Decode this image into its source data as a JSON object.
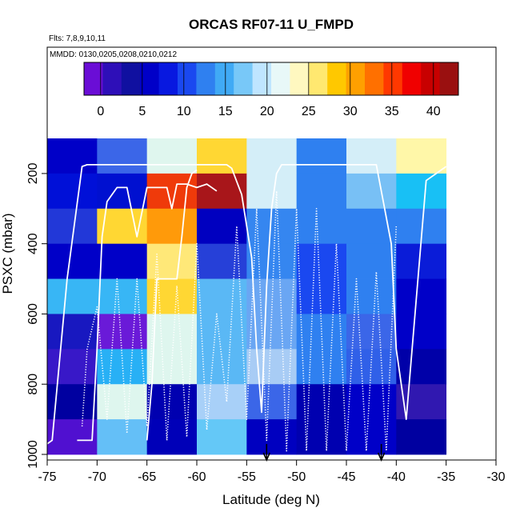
{
  "chart_data": {
    "type": "heatmap",
    "title": "ORCAS RF07-11 U_FMPD",
    "subtitle_flights": "Flts: 7,8,9,10,11",
    "subtitle_dates": "MMDD: 0130,0205,0208,0210,0212",
    "xlabel": "Latitude (deg N)",
    "ylabel": "PSXC (mbar)",
    "xlim": [
      -75,
      -30
    ],
    "ylim": [
      1000,
      100
    ],
    "x_ticks": [
      -75,
      -70,
      -65,
      -60,
      -55,
      -50,
      -45,
      -40,
      -35,
      -30
    ],
    "y_ticks": [
      200,
      400,
      600,
      800,
      1000
    ],
    "colorbar": {
      "range": [
        -2,
        43
      ],
      "ticks": [
        0,
        5,
        10,
        15,
        20,
        25,
        30,
        35,
        40
      ],
      "colors": [
        "#6a0dd6",
        "#2e0fb8",
        "#1010a0",
        "#0000c8",
        "#0818e0",
        "#1a48f0",
        "#2f80f0",
        "#40aaf5",
        "#78c8f8",
        "#bfe5ff",
        "#e8f8f8",
        "#fff8c0",
        "#ffe870",
        "#ffc800",
        "#ffa000",
        "#ff7000",
        "#ff3800",
        "#f00000",
        "#c80000",
        "#9a1010"
      ]
    },
    "lat_bins": [
      -75,
      -70,
      -65,
      -60,
      -55,
      -50,
      -45,
      -40,
      -35
    ],
    "pressure_bins": [
      100,
      200,
      300,
      400,
      500,
      600,
      700,
      800,
      900,
      1000
    ],
    "grid_colors": [
      [
        "#0000c8",
        "#3b66e8",
        "#dff6ee",
        "#ffd733",
        "#d4eef8",
        "#2f80f0",
        "#d4eef8",
        "#fff7a8"
      ],
      [
        "#0010d8",
        "#0010d0",
        "#ef3a0a",
        "#a8161a",
        "#d4eef8",
        "#2f80f0",
        "#78c0f5",
        "#18c0f5"
      ],
      [
        "#2238d8",
        "#ffd733",
        "#ff9a0a",
        "#0000c0",
        "#3586f0",
        "#2f80f0",
        "#2f80f0",
        "#2f80f0"
      ],
      [
        "#0000c8",
        "#0000c8",
        "#ffe878",
        "#2640d8",
        "#3586f0",
        "#1a48f0",
        "#2f80f0",
        "#0a1cd8"
      ],
      [
        "#38b6f5",
        "#38b6f5",
        "#ffd733",
        "#5ab8f5",
        "#6aa6f3",
        "#1a48f0",
        "#2f80f0",
        "#0000c8"
      ],
      [
        "#1818c0",
        "#6a1ad8",
        "#def6ee",
        "#5ab8f5",
        "#6aa6f3",
        "#2f80f0",
        "#3b66e8",
        "#0000c8"
      ],
      [
        "#3818c8",
        "#28b0f5",
        "#def6ee",
        "#5ab8f5",
        "#a8ccf5",
        "#2f80f0",
        "#3060e8",
        "#0000a8"
      ],
      [
        "#0000a0",
        "#def6ee",
        "#0000b0",
        "#a8d0f8",
        "#3b66e8",
        "#0000b0",
        "#0000c8",
        "#3018b0"
      ],
      [
        "#5010d0",
        "#64bff7",
        "#0000b8",
        "#64c8f7",
        "#0000c0",
        "#0000b0",
        "#0000c8",
        "#0000a0"
      ]
    ],
    "flight_tracks": [
      {
        "style": "solid",
        "lat": [
          -75,
          -74.5,
          -73,
          -71.5,
          -71,
          -70.5,
          -69,
          -67,
          -63,
          -62,
          -61,
          -57,
          -56.5,
          -55.5,
          -54.5,
          -54,
          -53.5,
          -53,
          -52.5,
          -52,
          -51.5,
          -51,
          -50,
          -48,
          -46,
          -44,
          -42,
          -40.5,
          -40,
          -39,
          -37,
          -35
        ],
        "p": [
          970,
          960,
          500,
          180,
          175,
          175,
          175,
          175,
          175,
          175,
          175,
          175,
          185,
          260,
          440,
          700,
          880,
          520,
          300,
          200,
          175,
          175,
          175,
          175,
          175,
          175,
          175,
          400,
          700,
          900,
          220,
          180
        ]
      },
      {
        "style": "solid",
        "lat": [
          -72,
          -70.5,
          -70,
          -69.5,
          -69,
          -68,
          -67,
          -66,
          -65,
          -64,
          -63,
          -62.5,
          -62,
          -61,
          -60,
          -59,
          -58
        ],
        "p": [
          960,
          960,
          700,
          380,
          280,
          240,
          240,
          380,
          240,
          240,
          240,
          300,
          230,
          230,
          240,
          230,
          250
        ]
      },
      {
        "style": "solid",
        "lat": [
          -65,
          -64.5,
          -64,
          -62,
          -61.5,
          -61,
          -60.5,
          -60
        ],
        "p": [
          960,
          800,
          500,
          500,
          380,
          240,
          200,
          190
        ]
      },
      {
        "style": "dotted",
        "lat": [
          -71.5,
          -71,
          -70,
          -69,
          -68,
          -67,
          -66,
          -65,
          -64,
          -63,
          -62,
          -61,
          -60,
          -59,
          -58,
          -57,
          -56,
          -55,
          -54,
          -53,
          -52,
          -51,
          -50,
          -49,
          -48,
          -47,
          -46,
          -45,
          -44,
          -43,
          -42,
          -41,
          -40
        ],
        "p": [
          920,
          700,
          580,
          900,
          500,
          940,
          500,
          920,
          430,
          960,
          520,
          950,
          400,
          930,
          600,
          850,
          350,
          900,
          300,
          960,
          250,
          990,
          300,
          990,
          300,
          990,
          400,
          990,
          500,
          990,
          480,
          990,
          350
        ]
      }
    ],
    "markers": [
      {
        "lat": -53,
        "symbol": "down-arrow"
      },
      {
        "lat": -41.5,
        "symbol": "down-arrow"
      }
    ]
  }
}
